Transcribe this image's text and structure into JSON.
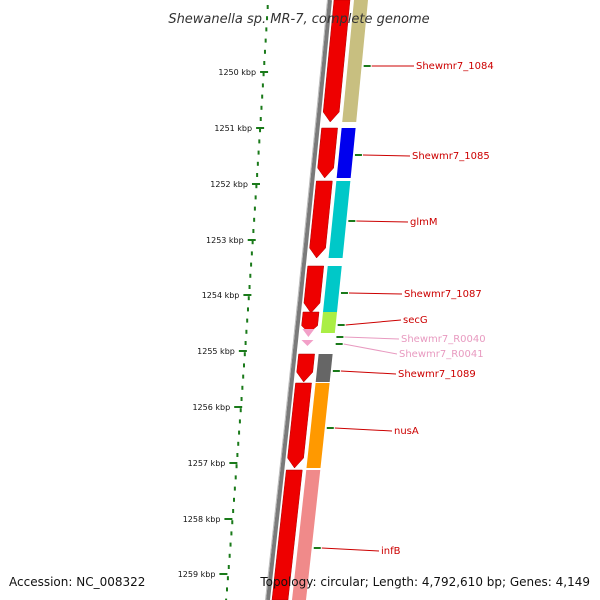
{
  "title": "Shewanella sp. MR-7, complete genome",
  "accession": "Accession: NC_008322",
  "topology": "Topology: circular; Length: 4,792,610 bp; Genes: 4,149",
  "colors": {
    "backbone": "#7a7a7a",
    "gc_dots": "#1a7a1a",
    "forward_gene": "#ee0000",
    "trna": "#f2a0c8",
    "label_red": "#cc0000",
    "label_pink": "#e89ac0"
  },
  "ticks": [
    {
      "label": "1250 kbp"
    },
    {
      "label": "1251 kbp"
    },
    {
      "label": "1252 kbp"
    },
    {
      "label": "1253 kbp"
    },
    {
      "label": "1254 kbp"
    },
    {
      "label": "1255 kbp"
    },
    {
      "label": "1256 kbp"
    },
    {
      "label": "1257 kbp"
    },
    {
      "label": "1258 kbp"
    },
    {
      "label": "1259 kbp"
    }
  ],
  "genes": [
    {
      "label": "Shewmr7_1084",
      "cog_color": "#c8bf80",
      "label_color": "#cc0000"
    },
    {
      "label": "Shewmr7_1085",
      "cog_color": "#0000ee",
      "label_color": "#cc0000"
    },
    {
      "label": "glmM",
      "cog_color": "#00c8c8",
      "label_color": "#cc0000"
    },
    {
      "label": "Shewmr7_1087",
      "cog_color": "#00c8c8",
      "label_color": "#cc0000"
    },
    {
      "label": "secG",
      "cog_color": "#aaee44",
      "label_color": "#cc0000"
    },
    {
      "label": "Shewmr7_R0040",
      "cog_color": "",
      "label_color": "#e89ac0"
    },
    {
      "label": "Shewmr7_R0041",
      "cog_color": "",
      "label_color": "#e89ac0"
    },
    {
      "label": "Shewmr7_1089",
      "cog_color": "#666666",
      "label_color": "#cc0000"
    },
    {
      "label": "nusA",
      "cog_color": "#ff9900",
      "label_color": "#cc0000"
    },
    {
      "label": "infB",
      "cog_color": "#f08a8a",
      "label_color": "#cc0000"
    }
  ]
}
